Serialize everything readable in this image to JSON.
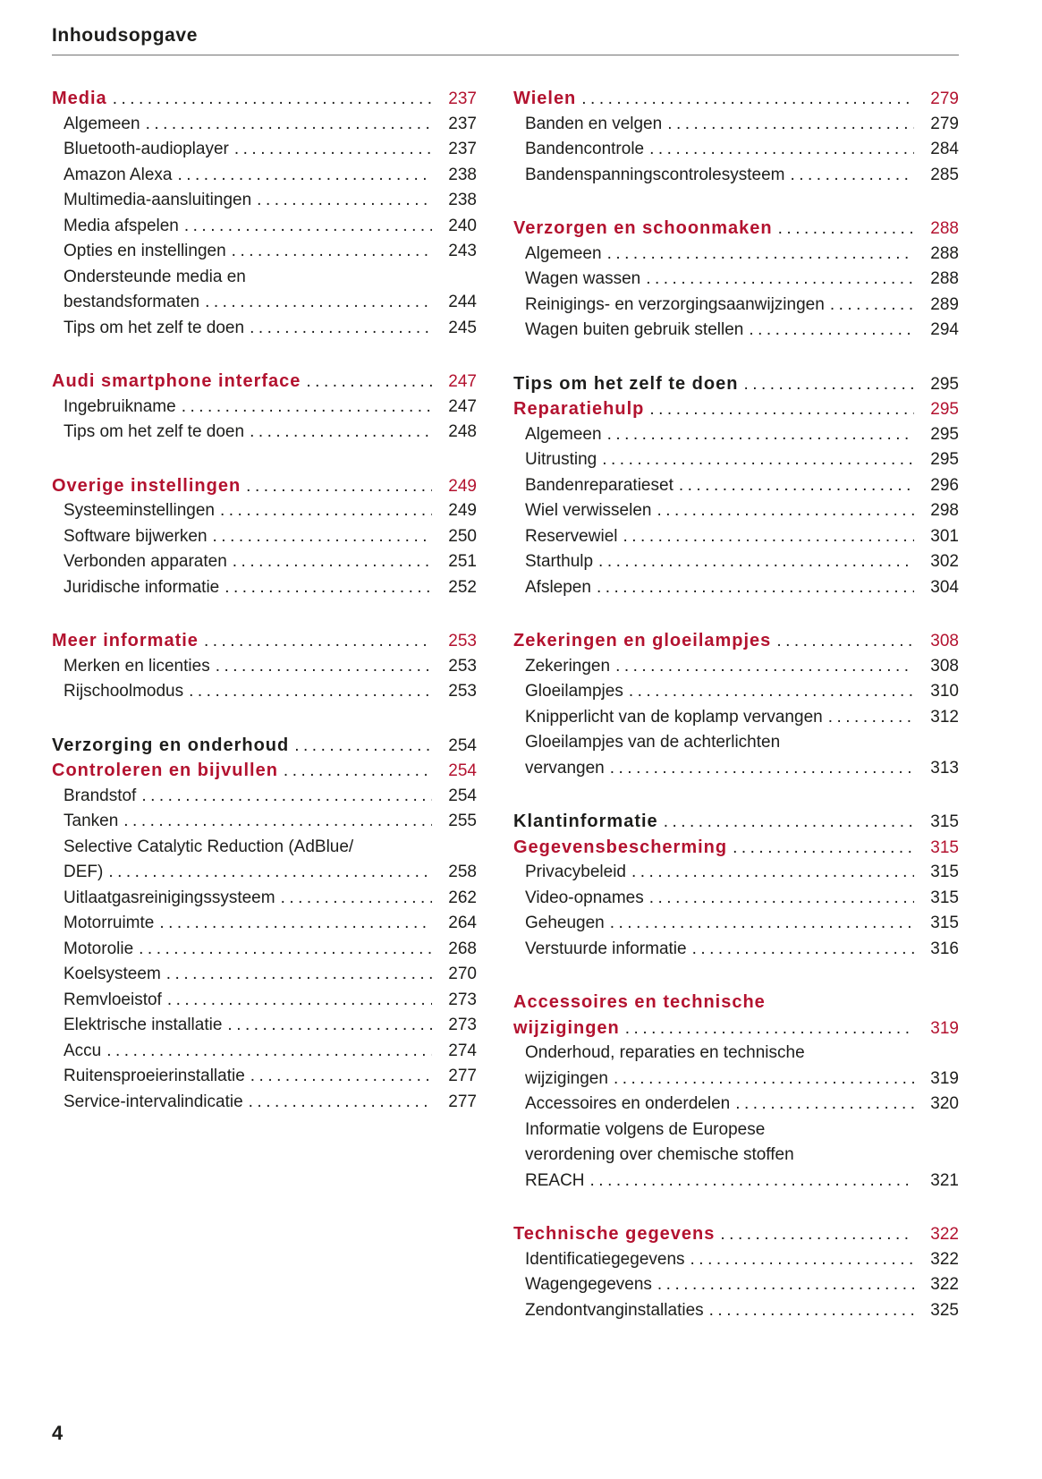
{
  "page": {
    "title": "Inhoudsopgave",
    "page_number": "4"
  },
  "colors": {
    "accent": "#b3122f",
    "text": "#1d1d1b",
    "rule": "#737373"
  },
  "columns": {
    "left": [
      {
        "entries": [
          {
            "lines": [
              "Media"
            ],
            "page": "237",
            "style": "h-accent"
          },
          {
            "lines": [
              "Algemeen"
            ],
            "page": "237",
            "style": "sub"
          },
          {
            "lines": [
              "Bluetooth-audioplayer"
            ],
            "page": "237",
            "style": "sub"
          },
          {
            "lines": [
              "Amazon Alexa"
            ],
            "page": "238",
            "style": "sub"
          },
          {
            "lines": [
              "Multimedia-aansluitingen"
            ],
            "page": "238",
            "style": "sub"
          },
          {
            "lines": [
              "Media afspelen"
            ],
            "page": "240",
            "style": "sub"
          },
          {
            "lines": [
              "Opties en instellingen"
            ],
            "page": "243",
            "style": "sub"
          },
          {
            "lines": [
              "Ondersteunde media en",
              "bestandsformaten"
            ],
            "page": "244",
            "style": "sub"
          },
          {
            "lines": [
              "Tips om het zelf te doen"
            ],
            "page": "245",
            "style": "sub"
          }
        ]
      },
      {
        "entries": [
          {
            "lines": [
              "Audi smartphone interface"
            ],
            "page": "247",
            "style": "h-accent"
          },
          {
            "lines": [
              "Ingebruikname"
            ],
            "page": "247",
            "style": "sub"
          },
          {
            "lines": [
              "Tips om het zelf te doen"
            ],
            "page": "248",
            "style": "sub"
          }
        ]
      },
      {
        "entries": [
          {
            "lines": [
              "Overige instellingen"
            ],
            "page": "249",
            "style": "h-accent"
          },
          {
            "lines": [
              "Systeeminstellingen"
            ],
            "page": "249",
            "style": "sub"
          },
          {
            "lines": [
              "Software bijwerken"
            ],
            "page": "250",
            "style": "sub"
          },
          {
            "lines": [
              "Verbonden apparaten"
            ],
            "page": "251",
            "style": "sub"
          },
          {
            "lines": [
              "Juridische informatie"
            ],
            "page": "252",
            "style": "sub"
          }
        ]
      },
      {
        "entries": [
          {
            "lines": [
              "Meer informatie"
            ],
            "page": "253",
            "style": "h-accent"
          },
          {
            "lines": [
              "Merken en licenties"
            ],
            "page": "253",
            "style": "sub"
          },
          {
            "lines": [
              "Rijschoolmodus"
            ],
            "page": "253",
            "style": "sub"
          }
        ]
      },
      {
        "entries": [
          {
            "lines": [
              "Verzorging en onderhoud"
            ],
            "page": "254",
            "style": "h-dark"
          },
          {
            "lines": [
              "Controleren en bijvullen"
            ],
            "page": "254",
            "style": "h-accent"
          },
          {
            "lines": [
              "Brandstof"
            ],
            "page": "254",
            "style": "sub"
          },
          {
            "lines": [
              "Tanken"
            ],
            "page": "255",
            "style": "sub"
          },
          {
            "lines": [
              "Selective Catalytic Reduction (AdBlue/",
              "DEF)"
            ],
            "page": "258",
            "style": "sub"
          },
          {
            "lines": [
              "Uitlaatgasreinigingssysteem"
            ],
            "page": "262",
            "style": "sub"
          },
          {
            "lines": [
              "Motorruimte"
            ],
            "page": "264",
            "style": "sub"
          },
          {
            "lines": [
              "Motorolie"
            ],
            "page": "268",
            "style": "sub"
          },
          {
            "lines": [
              "Koelsysteem"
            ],
            "page": "270",
            "style": "sub"
          },
          {
            "lines": [
              "Remvloeistof"
            ],
            "page": "273",
            "style": "sub"
          },
          {
            "lines": [
              "Elektrische installatie"
            ],
            "page": "273",
            "style": "sub"
          },
          {
            "lines": [
              "Accu"
            ],
            "page": "274",
            "style": "sub"
          },
          {
            "lines": [
              "Ruitensproeierinstallatie"
            ],
            "page": "277",
            "style": "sub"
          },
          {
            "lines": [
              "Service-intervalindicatie"
            ],
            "page": "277",
            "style": "sub"
          }
        ]
      }
    ],
    "right": [
      {
        "entries": [
          {
            "lines": [
              "Wielen"
            ],
            "page": "279",
            "style": "h-accent"
          },
          {
            "lines": [
              "Banden en velgen"
            ],
            "page": "279",
            "style": "sub"
          },
          {
            "lines": [
              "Bandencontrole"
            ],
            "page": "284",
            "style": "sub"
          },
          {
            "lines": [
              "Bandenspanningscontrolesysteem"
            ],
            "page": "285",
            "style": "sub"
          }
        ]
      },
      {
        "entries": [
          {
            "lines": [
              "Verzorgen en schoonmaken"
            ],
            "page": "288",
            "style": "h-accent"
          },
          {
            "lines": [
              "Algemeen"
            ],
            "page": "288",
            "style": "sub"
          },
          {
            "lines": [
              "Wagen wassen"
            ],
            "page": "288",
            "style": "sub"
          },
          {
            "lines": [
              "Reinigings- en verzorgingsaanwijzingen"
            ],
            "page": "289",
            "style": "sub"
          },
          {
            "lines": [
              "Wagen buiten gebruik stellen"
            ],
            "page": "294",
            "style": "sub"
          }
        ]
      },
      {
        "entries": [
          {
            "lines": [
              "Tips om het zelf te doen"
            ],
            "page": "295",
            "style": "h-dark"
          },
          {
            "lines": [
              "Reparatiehulp"
            ],
            "page": "295",
            "style": "h-accent"
          },
          {
            "lines": [
              "Algemeen"
            ],
            "page": "295",
            "style": "sub"
          },
          {
            "lines": [
              "Uitrusting"
            ],
            "page": "295",
            "style": "sub"
          },
          {
            "lines": [
              "Bandenreparatieset"
            ],
            "page": "296",
            "style": "sub"
          },
          {
            "lines": [
              "Wiel verwisselen"
            ],
            "page": "298",
            "style": "sub"
          },
          {
            "lines": [
              "Reservewiel"
            ],
            "page": "301",
            "style": "sub"
          },
          {
            "lines": [
              "Starthulp"
            ],
            "page": "302",
            "style": "sub"
          },
          {
            "lines": [
              "Afslepen"
            ],
            "page": "304",
            "style": "sub"
          }
        ]
      },
      {
        "entries": [
          {
            "lines": [
              "Zekeringen en gloeilampjes"
            ],
            "page": "308",
            "style": "h-accent"
          },
          {
            "lines": [
              "Zekeringen"
            ],
            "page": "308",
            "style": "sub"
          },
          {
            "lines": [
              "Gloeilampjes"
            ],
            "page": "310",
            "style": "sub"
          },
          {
            "lines": [
              "Knipperlicht van de koplamp vervangen"
            ],
            "page": "312",
            "style": "sub"
          },
          {
            "lines": [
              "Gloeilampjes van de achterlichten",
              "vervangen"
            ],
            "page": "313",
            "style": "sub"
          }
        ]
      },
      {
        "entries": [
          {
            "lines": [
              "Klantinformatie"
            ],
            "page": "315",
            "style": "h-dark"
          },
          {
            "lines": [
              "Gegevensbescherming"
            ],
            "page": "315",
            "style": "h-accent"
          },
          {
            "lines": [
              "Privacybeleid"
            ],
            "page": "315",
            "style": "sub"
          },
          {
            "lines": [
              "Video-opnames"
            ],
            "page": "315",
            "style": "sub"
          },
          {
            "lines": [
              "Geheugen"
            ],
            "page": "315",
            "style": "sub"
          },
          {
            "lines": [
              "Verstuurde informatie"
            ],
            "page": "316",
            "style": "sub"
          }
        ]
      },
      {
        "entries": [
          {
            "lines": [
              "Accessoires en technische",
              "wijzigingen"
            ],
            "page": "319",
            "style": "h-accent"
          },
          {
            "lines": [
              "Onderhoud, reparaties en technische",
              "wijzigingen"
            ],
            "page": "319",
            "style": "sub"
          },
          {
            "lines": [
              "Accessoires en onderdelen"
            ],
            "page": "320",
            "style": "sub"
          },
          {
            "lines": [
              "Informatie volgens de Europese",
              "verordening over chemische stoffen",
              "REACH"
            ],
            "page": "321",
            "style": "sub"
          }
        ]
      },
      {
        "entries": [
          {
            "lines": [
              "Technische gegevens"
            ],
            "page": "322",
            "style": "h-accent"
          },
          {
            "lines": [
              "Identificatiegegevens"
            ],
            "page": "322",
            "style": "sub"
          },
          {
            "lines": [
              "Wagengegevens"
            ],
            "page": "322",
            "style": "sub"
          },
          {
            "lines": [
              "Zendontvanginstallaties"
            ],
            "page": "325",
            "style": "sub"
          }
        ]
      }
    ]
  }
}
